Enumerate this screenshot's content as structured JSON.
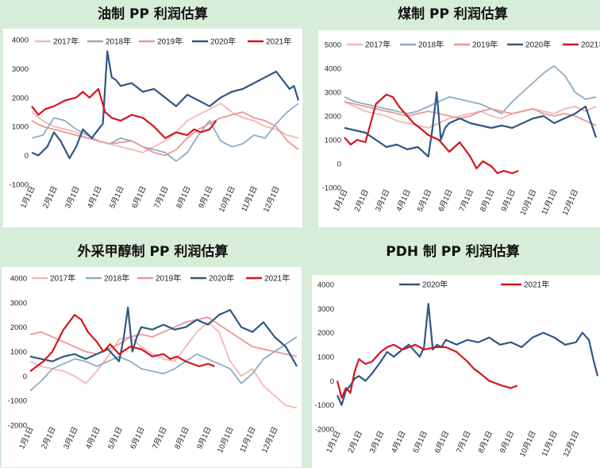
{
  "colors": {
    "y2017": "#f4b6b8",
    "y2018": "#8eaec4",
    "y2019": "#e99898",
    "y2020": "#2f5783",
    "y2021": "#d4161f"
  },
  "months": [
    "1月1日",
    "2月1日",
    "3月1日",
    "4月1日",
    "5月1日",
    "6月1日",
    "7月1日",
    "8月1日",
    "9月1日",
    "10月1日",
    "11月1日",
    "12月1日"
  ],
  "chart_data": [
    {
      "type": "line",
      "title": "油制 PP 利润估算",
      "yticks": [
        -1000,
        0,
        1000,
        2000,
        3000,
        4000
      ],
      "ylim": [
        -1000,
        4000
      ],
      "legend": [
        "2017年",
        "2018年",
        "2019年",
        "2020年",
        "2021年"
      ],
      "series": [
        {
          "name": "2017年",
          "key": "y2017",
          "x": [
            0,
            0.5,
            1,
            1.5,
            2,
            2.5,
            3,
            3.5,
            4,
            4.5,
            5,
            5.5,
            6,
            6.5,
            7,
            7.5,
            8,
            8.5,
            9,
            9.5,
            10,
            10.5,
            11,
            11.5,
            12
          ],
          "values": [
            1500,
            1200,
            1000,
            900,
            800,
            600,
            500,
            400,
            300,
            200,
            100,
            300,
            500,
            800,
            1200,
            1400,
            1600,
            1800,
            1500,
            1300,
            1200,
            1000,
            900,
            700,
            600
          ]
        },
        {
          "name": "2018年",
          "key": "y2018",
          "x": [
            0,
            0.5,
            1,
            1.5,
            2,
            2.5,
            3,
            3.5,
            4,
            4.5,
            5,
            5.5,
            6,
            6.5,
            7,
            7.5,
            8,
            8.5,
            9,
            9.5,
            10,
            10.5,
            11,
            11.5,
            12
          ],
          "values": [
            600,
            700,
            1300,
            1200,
            900,
            700,
            500,
            400,
            600,
            500,
            300,
            200,
            100,
            -200,
            100,
            700,
            1200,
            500,
            300,
            400,
            700,
            600,
            1100,
            1500,
            1800
          ]
        },
        {
          "name": "2019年",
          "key": "y2019",
          "x": [
            0,
            0.5,
            1,
            1.5,
            2,
            2.5,
            3,
            3.5,
            4,
            4.5,
            5,
            5.5,
            6,
            6.5,
            7,
            7.5,
            8,
            8.5,
            9,
            9.5,
            10,
            10.5,
            11,
            11.5,
            12
          ],
          "values": [
            1200,
            1000,
            900,
            800,
            700,
            600,
            500,
            400,
            450,
            500,
            300,
            100,
            0,
            200,
            600,
            900,
            1100,
            1300,
            1400,
            1500,
            1300,
            1200,
            1000,
            500,
            200
          ]
        },
        {
          "name": "2020年",
          "key": "y2020",
          "x": [
            0,
            0.3,
            0.7,
            1,
            1.3,
            1.7,
            2,
            2.3,
            2.7,
            3,
            3.2,
            3.4,
            3.6,
            3.8,
            4,
            4.5,
            5,
            5.5,
            6,
            6.5,
            7,
            7.5,
            8,
            8.5,
            9,
            9.5,
            10,
            10.5,
            11,
            11.3,
            11.6,
            11.8,
            12
          ],
          "values": [
            100,
            0,
            300,
            800,
            500,
            -100,
            300,
            900,
            600,
            900,
            1100,
            3600,
            2700,
            2600,
            2400,
            2500,
            2200,
            2300,
            2000,
            1700,
            2100,
            1900,
            1700,
            2000,
            2200,
            2300,
            2500,
            2700,
            2900,
            2600,
            2300,
            2400,
            1900
          ]
        },
        {
          "name": "2021年",
          "key": "y2021",
          "x": [
            0,
            0.3,
            0.6,
            1,
            1.5,
            2,
            2.3,
            2.6,
            3,
            3.3,
            3.6,
            4,
            4.5,
            5,
            5.5,
            6,
            6.5,
            7,
            7.3,
            7.6,
            8,
            8.3
          ],
          "values": [
            1700,
            1400,
            1600,
            1700,
            1900,
            2000,
            2200,
            2000,
            2300,
            1500,
            1300,
            1200,
            1400,
            1300,
            1000,
            600,
            800,
            700,
            900,
            800,
            900,
            1200
          ]
        }
      ]
    },
    {
      "type": "line",
      "title": "煤制 PP 利润估算",
      "yticks": [
        -1000,
        0,
        1000,
        2000,
        3000,
        4000,
        5000
      ],
      "ylim": [
        -1000,
        5000
      ],
      "legend": [
        "2017年",
        "2018年",
        "2019年",
        "2020年",
        "2021年"
      ],
      "series": [
        {
          "name": "2017年",
          "key": "y2017",
          "x": [
            0,
            0.5,
            1,
            1.5,
            2,
            2.5,
            3,
            3.5,
            4,
            4.5,
            5,
            5.5,
            6,
            6.5,
            7,
            7.5,
            8,
            8.5,
            9,
            9.5,
            10,
            10.5,
            11,
            11.5,
            12
          ],
          "values": [
            2600,
            2400,
            2200,
            2100,
            2000,
            1800,
            1700,
            1600,
            1500,
            1700,
            1900,
            2000,
            2100,
            2200,
            2000,
            1900,
            2100,
            2200,
            2300,
            2200,
            2100,
            2300,
            2400,
            2200,
            2400
          ]
        },
        {
          "name": "2018年",
          "key": "y2018",
          "x": [
            0,
            0.5,
            1,
            1.5,
            2,
            2.5,
            3,
            3.5,
            4,
            4.5,
            5,
            5.5,
            6,
            6.5,
            7,
            7.5,
            8,
            8.5,
            9,
            9.5,
            10,
            10.5,
            11,
            11.5,
            12
          ],
          "values": [
            2800,
            2600,
            2500,
            2400,
            2300,
            2200,
            2100,
            2200,
            2400,
            2600,
            2800,
            2700,
            2600,
            2500,
            2300,
            2100,
            2600,
            3000,
            3400,
            3800,
            4100,
            3700,
            3000,
            2700,
            2800
          ]
        },
        {
          "name": "2019年",
          "key": "y2019",
          "x": [
            0,
            0.5,
            1,
            1.5,
            2,
            2.5,
            3,
            3.5,
            4,
            4.5,
            5,
            5.5,
            6,
            6.5,
            7,
            7.5,
            8,
            8.5,
            9,
            9.5,
            10,
            10.5,
            11,
            11.5,
            12
          ],
          "values": [
            2600,
            2500,
            2400,
            2300,
            2200,
            2100,
            2000,
            2100,
            2200,
            2100,
            2000,
            1900,
            2000,
            2200,
            2300,
            2200,
            2100,
            2200,
            2300,
            2100,
            2000,
            2100,
            2000,
            1800,
            1600
          ]
        },
        {
          "name": "2020年",
          "key": "y2020",
          "x": [
            0,
            0.5,
            1,
            1.5,
            2,
            2.5,
            3,
            3.5,
            4,
            4.2,
            4.4,
            4.6,
            4.8,
            5,
            5.5,
            6,
            6.5,
            7,
            7.5,
            8,
            8.5,
            9,
            9.5,
            10,
            10.5,
            11,
            11.5,
            12
          ],
          "values": [
            1500,
            1400,
            1300,
            1000,
            700,
            800,
            600,
            700,
            300,
            1500,
            3000,
            1000,
            1500,
            1700,
            1900,
            1700,
            1600,
            1500,
            1600,
            1500,
            1700,
            1900,
            2000,
            1700,
            1900,
            2100,
            2400,
            1100
          ]
        },
        {
          "name": "2021年",
          "key": "y2021",
          "x": [
            0,
            0.3,
            0.6,
            1,
            1.5,
            2,
            2.3,
            2.6,
            3,
            3.3,
            3.6,
            4,
            4.5,
            5,
            5.5,
            6,
            6.3,
            6.6,
            7,
            7.3,
            7.6,
            8,
            8.3
          ],
          "values": [
            1100,
            800,
            1000,
            900,
            2500,
            2900,
            2800,
            2400,
            2000,
            1700,
            1500,
            1200,
            1000,
            500,
            900,
            300,
            -200,
            100,
            -100,
            -400,
            -300,
            -400,
            -300
          ]
        }
      ]
    },
    {
      "type": "line",
      "title": "外采甲醇制 PP 利润估算",
      "yticks": [
        -2000,
        -1000,
        0,
        1000,
        2000,
        3000,
        4000
      ],
      "ylim": [
        -2000,
        4000
      ],
      "legend": [
        "2017年",
        "2018年",
        "2019年",
        "2020年",
        "2021年"
      ],
      "series": [
        {
          "name": "2017年",
          "key": "y2017",
          "x": [
            0,
            0.5,
            1,
            1.5,
            2,
            2.5,
            3,
            3.5,
            4,
            4.5,
            5,
            5.5,
            6,
            6.5,
            7,
            7.5,
            8,
            8.5,
            9,
            9.5,
            10,
            10.5,
            11,
            11.5,
            12
          ],
          "values": [
            600,
            400,
            300,
            200,
            0,
            -300,
            200,
            800,
            1500,
            1600,
            1200,
            900,
            700,
            600,
            1200,
            1800,
            2200,
            1800,
            600,
            0,
            300,
            -400,
            -800,
            -1200,
            -1300
          ]
        },
        {
          "name": "2018年",
          "key": "y2018",
          "x": [
            0,
            0.5,
            1,
            1.5,
            2,
            2.5,
            3,
            3.5,
            4,
            4.5,
            5,
            5.5,
            6,
            6.5,
            7,
            7.5,
            8,
            8.5,
            9,
            9.5,
            10,
            10.5,
            11,
            11.5,
            12
          ],
          "values": [
            -600,
            -200,
            300,
            500,
            700,
            600,
            400,
            600,
            800,
            600,
            300,
            200,
            100,
            300,
            600,
            900,
            700,
            500,
            300,
            -300,
            100,
            700,
            1000,
            1300,
            1600
          ]
        },
        {
          "name": "2019年",
          "key": "y2019",
          "x": [
            0,
            0.5,
            1,
            1.5,
            2,
            2.5,
            3,
            3.5,
            4,
            4.5,
            5,
            5.5,
            6,
            6.5,
            7,
            7.5,
            8,
            8.5,
            9,
            9.5,
            10,
            10.5,
            11,
            11.5,
            12
          ],
          "values": [
            1700,
            1800,
            1600,
            1400,
            1200,
            1000,
            900,
            1100,
            1300,
            1600,
            1700,
            1600,
            1800,
            2000,
            2200,
            2300,
            2400,
            2100,
            1800,
            1500,
            1200,
            1100,
            1000,
            900,
            800
          ]
        },
        {
          "name": "2020年",
          "key": "y2020",
          "x": [
            0,
            0.5,
            1,
            1.5,
            2,
            2.5,
            3,
            3.5,
            4,
            4.2,
            4.4,
            4.6,
            4.8,
            5,
            5.5,
            6,
            6.5,
            7,
            7.5,
            8,
            8.5,
            9,
            9.5,
            10,
            10.5,
            11,
            11.5,
            12
          ],
          "values": [
            800,
            700,
            600,
            800,
            900,
            700,
            900,
            1100,
            600,
            1500,
            2800,
            1000,
            1600,
            2000,
            1900,
            2100,
            1900,
            2000,
            2300,
            2100,
            2500,
            2700,
            2000,
            1800,
            2200,
            1600,
            1200,
            400
          ]
        },
        {
          "name": "2021年",
          "key": "y2021",
          "x": [
            0,
            0.3,
            0.6,
            1,
            1.5,
            2,
            2.3,
            2.6,
            3,
            3.3,
            3.6,
            4,
            4.5,
            5,
            5.5,
            6,
            6.3,
            6.6,
            7,
            7.3,
            7.6,
            8,
            8.3
          ],
          "values": [
            200,
            400,
            600,
            1000,
            1900,
            2500,
            2300,
            1800,
            1400,
            1000,
            1300,
            900,
            1200,
            1100,
            800,
            900,
            700,
            800,
            600,
            500,
            400,
            500,
            400
          ]
        }
      ]
    },
    {
      "type": "line",
      "title": "PDH 制 PP 利润估算",
      "yticks": [
        -2000,
        -1000,
        0,
        1000,
        2000,
        3000,
        4000
      ],
      "ylim": [
        -2000,
        4000
      ],
      "legend": [
        "2020年",
        "2021年"
      ],
      "series": [
        {
          "name": "2020年",
          "key": "y2020",
          "x": [
            0,
            0.2,
            0.4,
            0.6,
            0.8,
            1,
            1.3,
            1.6,
            2,
            2.3,
            2.6,
            3,
            3.3,
            3.6,
            3.8,
            4,
            4.2,
            4.4,
            4.6,
            4.8,
            5,
            5.5,
            6,
            6.5,
            7,
            7.5,
            8,
            8.5,
            9,
            9.5,
            10,
            10.5,
            11,
            11.3,
            11.6,
            11.8,
            12
          ],
          "values": [
            -600,
            -1000,
            -400,
            -200,
            100,
            200,
            0,
            300,
            800,
            1200,
            1000,
            1300,
            1500,
            1200,
            1000,
            1400,
            3200,
            1300,
            1500,
            1400,
            1700,
            1500,
            1700,
            1600,
            1800,
            1500,
            1600,
            1400,
            1800,
            2000,
            1800,
            1500,
            1600,
            2000,
            1700,
            900,
            200
          ]
        },
        {
          "name": "2021年",
          "key": "y2021",
          "x": [
            0,
            0.2,
            0.4,
            0.6,
            0.8,
            1,
            1.3,
            1.6,
            2,
            2.3,
            2.6,
            3,
            3.3,
            3.6,
            4,
            4.5,
            5,
            5.5,
            6,
            6.3,
            6.6,
            7,
            7.3,
            7.6,
            8,
            8.3
          ],
          "values": [
            0,
            -700,
            -300,
            -500,
            400,
            900,
            700,
            800,
            1200,
            1400,
            1500,
            1300,
            1400,
            1500,
            1300,
            1400,
            1400,
            1200,
            800,
            500,
            300,
            0,
            -100,
            -200,
            -300,
            -200
          ]
        }
      ]
    }
  ]
}
